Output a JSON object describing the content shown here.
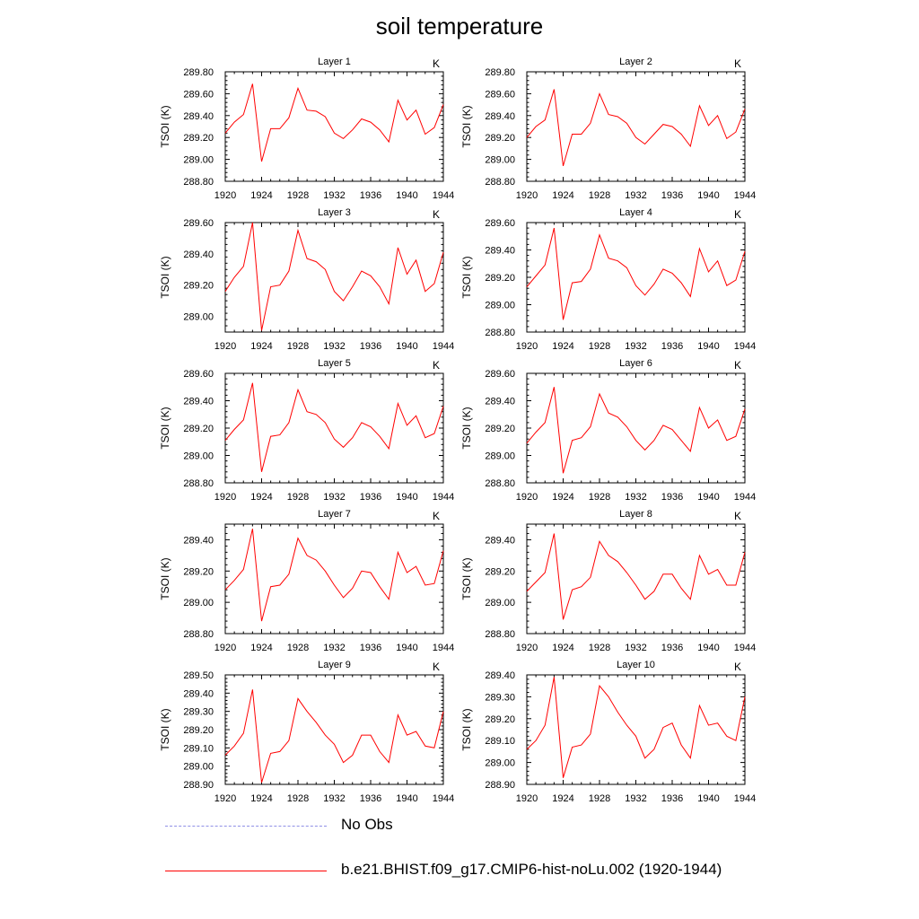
{
  "title": "soil temperature",
  "colors": {
    "model": "#ff0000",
    "obs": "#8f8fe6",
    "axis": "#000000"
  },
  "legend": [
    {
      "label": "No Obs",
      "style": "dashed",
      "color": "#8f8fe6"
    },
    {
      "label": "b.e21.BHIST.f09_g17.CMIP6-hist-noLu.002 (1920-1944)",
      "style": "solid",
      "color": "#ff0000"
    }
  ],
  "chart_data": [
    {
      "type": "line",
      "title": "Layer 1",
      "units": "K",
      "ylabel": "TSOI  (K)",
      "xlim": [
        1920,
        1944
      ],
      "xticks": [
        "1920",
        "1924",
        "1928",
        "1932",
        "1936",
        "1940",
        "1944"
      ],
      "ylim": [
        288.8,
        289.8
      ],
      "yticks": [
        "288.80",
        "289.00",
        "289.20",
        "289.40",
        "289.60",
        "289.80"
      ],
      "x": [
        1920,
        1921,
        1922,
        1923,
        1924,
        1925,
        1926,
        1927,
        1928,
        1929,
        1930,
        1931,
        1932,
        1933,
        1934,
        1935,
        1936,
        1937,
        1938,
        1939,
        1940,
        1941,
        1942,
        1943,
        1944
      ],
      "series": [
        {
          "name": "b.e21.BHIST.f09_g17.CMIP6-hist-noLu.002 (1920-1944)",
          "values": [
            289.24,
            289.34,
            289.41,
            289.69,
            288.98,
            289.28,
            289.28,
            289.38,
            289.65,
            289.45,
            289.44,
            289.39,
            289.24,
            289.19,
            289.27,
            289.37,
            289.34,
            289.27,
            289.16,
            289.54,
            289.36,
            289.45,
            289.23,
            289.29,
            289.5
          ]
        }
      ]
    },
    {
      "type": "line",
      "title": "Layer 2",
      "units": "K",
      "ylabel": "TSOI  (K)",
      "xlim": [
        1920,
        1944
      ],
      "xticks": [
        "1920",
        "1924",
        "1928",
        "1932",
        "1936",
        "1940",
        "1944"
      ],
      "ylim": [
        288.8,
        289.8
      ],
      "yticks": [
        "288.80",
        "289.00",
        "289.20",
        "289.40",
        "289.60",
        "289.80"
      ],
      "x": [
        1920,
        1921,
        1922,
        1923,
        1924,
        1925,
        1926,
        1927,
        1928,
        1929,
        1930,
        1931,
        1932,
        1933,
        1934,
        1935,
        1936,
        1937,
        1938,
        1939,
        1940,
        1941,
        1942,
        1943,
        1944
      ],
      "series": [
        {
          "name": "b.e21.BHIST.f09_g17.CMIP6-hist-noLu.002 (1920-1944)",
          "values": [
            289.2,
            289.3,
            289.36,
            289.64,
            288.94,
            289.23,
            289.23,
            289.33,
            289.6,
            289.41,
            289.39,
            289.33,
            289.2,
            289.14,
            289.23,
            289.32,
            289.3,
            289.23,
            289.12,
            289.49,
            289.31,
            289.4,
            289.19,
            289.25,
            289.46
          ]
        }
      ]
    },
    {
      "type": "line",
      "title": "Layer 3",
      "units": "K",
      "ylabel": "TSOI  (K)",
      "xlim": [
        1920,
        1944
      ],
      "xticks": [
        "1920",
        "1924",
        "1928",
        "1932",
        "1936",
        "1940",
        "1944"
      ],
      "ylim": [
        288.9,
        289.6
      ],
      "yticks": [
        "289.00",
        "289.20",
        "289.40",
        "289.60"
      ],
      "x": [
        1920,
        1921,
        1922,
        1923,
        1924,
        1925,
        1926,
        1927,
        1928,
        1929,
        1930,
        1931,
        1932,
        1933,
        1934,
        1935,
        1936,
        1937,
        1938,
        1939,
        1940,
        1941,
        1942,
        1943,
        1944
      ],
      "series": [
        {
          "name": "b.e21.BHIST.f09_g17.CMIP6-hist-noLu.002 (1920-1944)",
          "values": [
            289.16,
            289.25,
            289.32,
            289.6,
            288.91,
            289.19,
            289.2,
            289.29,
            289.55,
            289.37,
            289.35,
            289.3,
            289.16,
            289.1,
            289.19,
            289.29,
            289.26,
            289.19,
            289.08,
            289.44,
            289.27,
            289.36,
            289.16,
            289.21,
            289.41
          ]
        }
      ]
    },
    {
      "type": "line",
      "title": "Layer 4",
      "units": "K",
      "ylabel": "TSOI  (K)",
      "xlim": [
        1920,
        1944
      ],
      "xticks": [
        "1920",
        "1924",
        "1928",
        "1932",
        "1936",
        "1940",
        "1944"
      ],
      "ylim": [
        288.8,
        289.6
      ],
      "yticks": [
        "288.80",
        "289.00",
        "289.20",
        "289.40",
        "289.60"
      ],
      "x": [
        1920,
        1921,
        1922,
        1923,
        1924,
        1925,
        1926,
        1927,
        1928,
        1929,
        1930,
        1931,
        1932,
        1933,
        1934,
        1935,
        1936,
        1937,
        1938,
        1939,
        1940,
        1941,
        1942,
        1943,
        1944
      ],
      "series": [
        {
          "name": "b.e21.BHIST.f09_g17.CMIP6-hist-noLu.002 (1920-1944)",
          "values": [
            289.13,
            289.21,
            289.29,
            289.56,
            288.89,
            289.16,
            289.17,
            289.26,
            289.51,
            289.34,
            289.32,
            289.27,
            289.14,
            289.07,
            289.15,
            289.26,
            289.23,
            289.16,
            289.06,
            289.41,
            289.24,
            289.32,
            289.14,
            289.18,
            289.39
          ]
        }
      ]
    },
    {
      "type": "line",
      "title": "Layer 5",
      "units": "K",
      "ylabel": "TSOI  (K)",
      "xlim": [
        1920,
        1944
      ],
      "xticks": [
        "1920",
        "1924",
        "1928",
        "1932",
        "1936",
        "1940",
        "1944"
      ],
      "ylim": [
        288.8,
        289.6
      ],
      "yticks": [
        "288.80",
        "289.00",
        "289.20",
        "289.40",
        "289.60"
      ],
      "x": [
        1920,
        1921,
        1922,
        1923,
        1924,
        1925,
        1926,
        1927,
        1928,
        1929,
        1930,
        1931,
        1932,
        1933,
        1934,
        1935,
        1936,
        1937,
        1938,
        1939,
        1940,
        1941,
        1942,
        1943,
        1944
      ],
      "series": [
        {
          "name": "b.e21.BHIST.f09_g17.CMIP6-hist-noLu.002 (1920-1944)",
          "values": [
            289.11,
            289.19,
            289.26,
            289.53,
            288.88,
            289.14,
            289.15,
            289.24,
            289.48,
            289.32,
            289.3,
            289.24,
            289.12,
            289.06,
            289.13,
            289.24,
            289.21,
            289.14,
            289.05,
            289.38,
            289.22,
            289.29,
            289.13,
            289.16,
            289.36
          ]
        }
      ]
    },
    {
      "type": "line",
      "title": "Layer 6",
      "units": "K",
      "ylabel": "TSOI  (K)",
      "xlim": [
        1920,
        1944
      ],
      "xticks": [
        "1920",
        "1924",
        "1928",
        "1932",
        "1936",
        "1940",
        "1944"
      ],
      "ylim": [
        288.8,
        289.6
      ],
      "yticks": [
        "288.80",
        "289.00",
        "289.20",
        "289.40",
        "289.60"
      ],
      "x": [
        1920,
        1921,
        1922,
        1923,
        1924,
        1925,
        1926,
        1927,
        1928,
        1929,
        1930,
        1931,
        1932,
        1933,
        1934,
        1935,
        1936,
        1937,
        1938,
        1939,
        1940,
        1941,
        1942,
        1943,
        1944
      ],
      "series": [
        {
          "name": "b.e21.BHIST.f09_g17.CMIP6-hist-noLu.002 (1920-1944)",
          "values": [
            289.09,
            289.17,
            289.24,
            289.5,
            288.87,
            289.11,
            289.13,
            289.21,
            289.45,
            289.31,
            289.28,
            289.21,
            289.11,
            289.04,
            289.11,
            289.22,
            289.19,
            289.11,
            289.03,
            289.35,
            289.2,
            289.26,
            289.11,
            289.14,
            289.34
          ]
        }
      ]
    },
    {
      "type": "line",
      "title": "Layer 7",
      "units": "K",
      "ylabel": "TSOI  (K)",
      "xlim": [
        1920,
        1944
      ],
      "xticks": [
        "1920",
        "1924",
        "1928",
        "1932",
        "1936",
        "1940",
        "1944"
      ],
      "ylim": [
        288.8,
        289.5
      ],
      "yticks": [
        "288.80",
        "289.00",
        "289.20",
        "289.40"
      ],
      "x": [
        1920,
        1921,
        1922,
        1923,
        1924,
        1925,
        1926,
        1927,
        1928,
        1929,
        1930,
        1931,
        1932,
        1933,
        1934,
        1935,
        1936,
        1937,
        1938,
        1939,
        1940,
        1941,
        1942,
        1943,
        1944
      ],
      "series": [
        {
          "name": "b.e21.BHIST.f09_g17.CMIP6-hist-noLu.002 (1920-1944)",
          "values": [
            289.08,
            289.14,
            289.21,
            289.47,
            288.88,
            289.1,
            289.11,
            289.18,
            289.41,
            289.3,
            289.27,
            289.2,
            289.11,
            289.03,
            289.09,
            289.2,
            289.19,
            289.1,
            289.02,
            289.32,
            289.19,
            289.23,
            289.11,
            289.12,
            289.33
          ]
        }
      ]
    },
    {
      "type": "line",
      "title": "Layer 8",
      "units": "K",
      "ylabel": "TSOI  (K)",
      "xlim": [
        1920,
        1944
      ],
      "xticks": [
        "1920",
        "1924",
        "1928",
        "1932",
        "1936",
        "1940",
        "1944"
      ],
      "ylim": [
        288.8,
        289.5
      ],
      "yticks": [
        "288.80",
        "289.00",
        "289.20",
        "289.40"
      ],
      "x": [
        1920,
        1921,
        1922,
        1923,
        1924,
        1925,
        1926,
        1927,
        1928,
        1929,
        1930,
        1931,
        1932,
        1933,
        1934,
        1935,
        1936,
        1937,
        1938,
        1939,
        1940,
        1941,
        1942,
        1943,
        1944
      ],
      "series": [
        {
          "name": "b.e21.BHIST.f09_g17.CMIP6-hist-noLu.002 (1920-1944)",
          "values": [
            289.07,
            289.13,
            289.19,
            289.44,
            288.89,
            289.08,
            289.1,
            289.16,
            289.39,
            289.3,
            289.26,
            289.19,
            289.11,
            289.02,
            289.07,
            289.18,
            289.18,
            289.09,
            289.02,
            289.3,
            289.18,
            289.21,
            289.11,
            289.11,
            289.32
          ]
        }
      ]
    },
    {
      "type": "line",
      "title": "Layer 9",
      "units": "K",
      "ylabel": "TSOI  (K)",
      "xlim": [
        1920,
        1944
      ],
      "xticks": [
        "1920",
        "1924",
        "1928",
        "1932",
        "1936",
        "1940",
        "1944"
      ],
      "ylim": [
        288.9,
        289.5
      ],
      "yticks": [
        "288.90",
        "289.00",
        "289.10",
        "289.20",
        "289.30",
        "289.40",
        "289.50"
      ],
      "x": [
        1920,
        1921,
        1922,
        1923,
        1924,
        1925,
        1926,
        1927,
        1928,
        1929,
        1930,
        1931,
        1932,
        1933,
        1934,
        1935,
        1936,
        1937,
        1938,
        1939,
        1940,
        1941,
        1942,
        1943,
        1944
      ],
      "series": [
        {
          "name": "b.e21.BHIST.f09_g17.CMIP6-hist-noLu.002 (1920-1944)",
          "values": [
            289.06,
            289.11,
            289.18,
            289.42,
            288.91,
            289.07,
            289.08,
            289.14,
            289.37,
            289.3,
            289.24,
            289.17,
            289.12,
            289.02,
            289.06,
            289.17,
            289.17,
            289.08,
            289.02,
            289.28,
            289.17,
            289.19,
            289.11,
            289.1,
            289.3
          ]
        }
      ]
    },
    {
      "type": "line",
      "title": "Layer 10",
      "units": "K",
      "ylabel": "TSOI  (K)",
      "xlim": [
        1920,
        1944
      ],
      "xticks": [
        "1920",
        "1924",
        "1928",
        "1932",
        "1936",
        "1940",
        "1944"
      ],
      "ylim": [
        288.9,
        289.4
      ],
      "yticks": [
        "288.90",
        "289.00",
        "289.10",
        "289.20",
        "289.30",
        "289.40"
      ],
      "x": [
        1920,
        1921,
        1922,
        1923,
        1924,
        1925,
        1926,
        1927,
        1928,
        1929,
        1930,
        1931,
        1932,
        1933,
        1934,
        1935,
        1936,
        1937,
        1938,
        1939,
        1940,
        1941,
        1942,
        1943,
        1944
      ],
      "series": [
        {
          "name": "b.e21.BHIST.f09_g17.CMIP6-hist-noLu.002 (1920-1944)",
          "values": [
            289.06,
            289.1,
            289.17,
            289.39,
            288.93,
            289.07,
            289.08,
            289.13,
            289.35,
            289.3,
            289.23,
            289.17,
            289.12,
            289.02,
            289.06,
            289.16,
            289.18,
            289.08,
            289.02,
            289.26,
            289.17,
            289.18,
            289.12,
            289.1,
            289.3
          ]
        }
      ]
    }
  ]
}
